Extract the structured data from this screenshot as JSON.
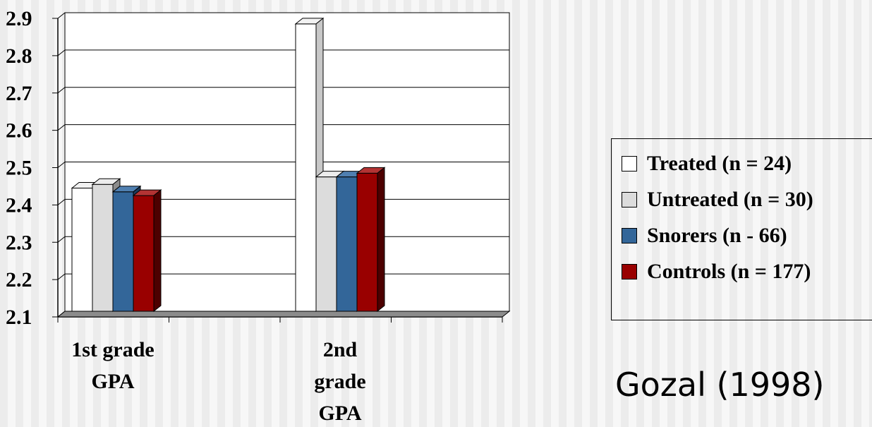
{
  "chart_data": {
    "type": "bar",
    "categories": [
      "1st grade GPA",
      "2nd grade GPA"
    ],
    "category_label_lines": [
      [
        "1st grade",
        "GPA"
      ],
      [
        "2nd",
        "grade",
        "GPA"
      ]
    ],
    "series": [
      {
        "name": "Treated (n = 24)",
        "values": [
          2.43,
          2.87
        ],
        "color": "#ffffff",
        "side": "#c8c8c8",
        "top": "#f2f2f2"
      },
      {
        "name": "Untreated (n = 30)",
        "values": [
          2.44,
          2.46
        ],
        "color": "#dcdcdc",
        "side": "#8c8c8c",
        "top": "#ececec"
      },
      {
        "name": "Snorers (n - 66)",
        "values": [
          2.42,
          2.46
        ],
        "color": "#336699",
        "side": "#1c3a5c",
        "top": "#4f7fb0"
      },
      {
        "name": "Controls (n = 177)",
        "values": [
          2.41,
          2.47
        ],
        "color": "#990000",
        "side": "#4d0000",
        "top": "#b33333"
      }
    ],
    "ylim": [
      2.1,
      2.9
    ],
    "yticks": [
      "2.1",
      "2.2",
      "2.3",
      "2.4",
      "2.5",
      "2.6",
      "2.7",
      "2.8",
      "2.9"
    ],
    "grid": true,
    "legend": "right",
    "title": "",
    "xlabel": "",
    "ylabel": ""
  },
  "citation": "Gozal (1998)"
}
